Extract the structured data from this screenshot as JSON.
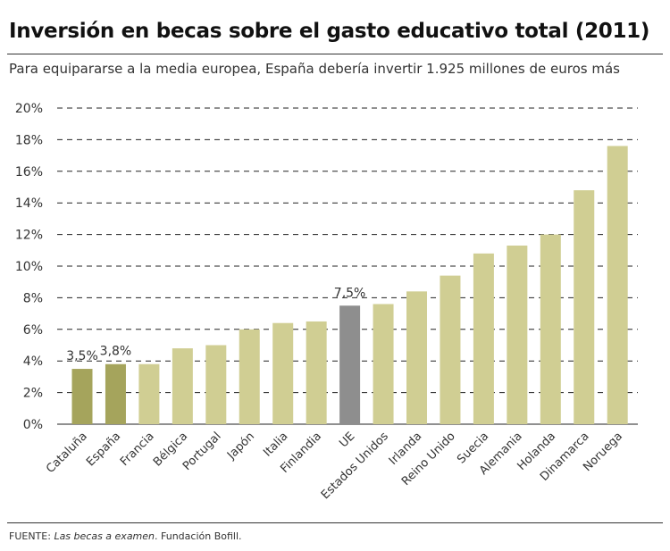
{
  "title": "Inversión en becas sobre el gasto educativo total (2011)",
  "subtitle": "Para equipararse a la media europea, España debería invertir 1.925 millones de euros más",
  "footer": {
    "prefix": "FUENTE: ",
    "source_italic": "Las becas a examen",
    "suffix": ". Fundación Bofill."
  },
  "colors": {
    "default": "#d0ce93",
    "highlight": "#a5a45c",
    "eu": "#8e8e8e"
  },
  "chart_data": {
    "type": "bar",
    "categories": [
      "Cataluña",
      "España",
      "Francia",
      "Bélgica",
      "Portugal",
      "Japón",
      "Italia",
      "Finlandia",
      "UE",
      "Estados Unidos",
      "Irlanda",
      "Reino Unido",
      "Suecia",
      "Alemania",
      "Holanda",
      "Dinamarca",
      "Noruega"
    ],
    "values": [
      3.5,
      3.8,
      3.8,
      4.8,
      5.0,
      6.0,
      6.4,
      6.5,
      7.5,
      7.6,
      8.4,
      9.4,
      10.8,
      11.3,
      12.0,
      14.8,
      17.6
    ],
    "highlight": [
      "highlight",
      "highlight",
      "default",
      "default",
      "default",
      "default",
      "default",
      "default",
      "eu",
      "default",
      "default",
      "default",
      "default",
      "default",
      "default",
      "default",
      "default"
    ],
    "data_labels": {
      "Cataluña": "3,5%",
      "España": "3,8%",
      "UE": "7,5%"
    },
    "yticks": [
      "0%",
      "2%",
      "4%",
      "6%",
      "8%",
      "10%",
      "12%",
      "14%",
      "16%",
      "18%",
      "20%"
    ],
    "ylim": [
      0,
      20
    ],
    "grid": "dashed horizontal",
    "xlabel": "",
    "ylabel": ""
  }
}
